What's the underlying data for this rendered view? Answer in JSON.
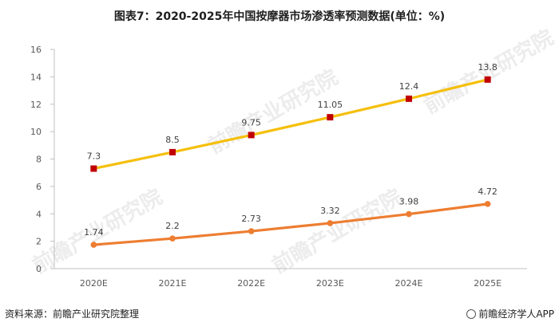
{
  "title": "图表7：2020-2025年中国按摩器市场渗透率预测数据(单位：%)",
  "source": "资料来源：前瞻产业研究院整理",
  "brand": "前瞻经济学人APP",
  "watermark": "前瞻产业研究院",
  "chart_data": {
    "type": "line",
    "categories": [
      "2020E",
      "2021E",
      "2022E",
      "2023E",
      "2024E",
      "2025E"
    ],
    "ylim": [
      0,
      16
    ],
    "yticks": [
      0,
      2,
      4,
      6,
      8,
      10,
      12,
      14,
      16
    ],
    "grid": false,
    "series": [
      {
        "values": [
          7.3,
          8.5,
          9.75,
          11.05,
          12.4,
          13.8
        ],
        "labels": [
          "7.3",
          "8.5",
          "9.75",
          "11.05",
          "12.4",
          "13.8"
        ],
        "line_color": "#F5BF0B",
        "marker_color": "#C00000",
        "marker": "square"
      },
      {
        "values": [
          1.74,
          2.2,
          2.73,
          3.32,
          3.98,
          4.72
        ],
        "labels": [
          "1.74",
          "2.2",
          "2.73",
          "3.32",
          "3.98",
          "4.72"
        ],
        "line_color": "#ED7D31",
        "marker_color": "#ED7D31",
        "marker": "circle"
      }
    ]
  }
}
